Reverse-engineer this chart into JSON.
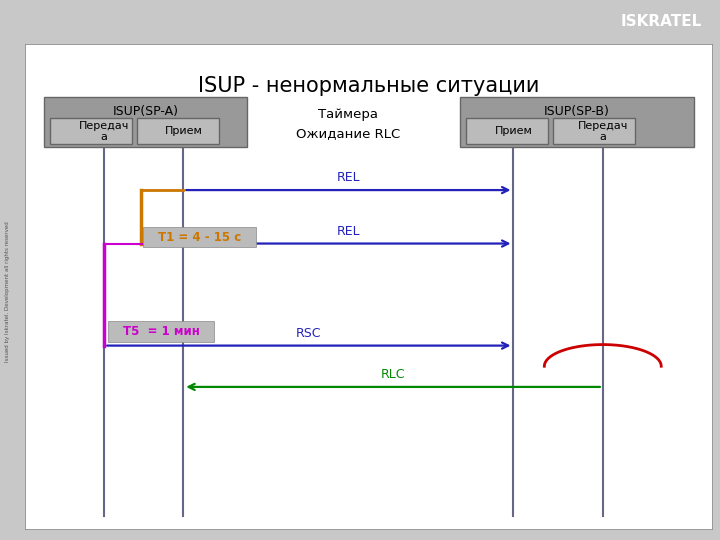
{
  "title": "ISUP - ненормальные ситуации",
  "header_bg": "#1E7FD8",
  "header_text": "ISKRATEL",
  "slide_bg": "#C8C8C8",
  "inner_bg": "#FFFFFF",
  "box_bg": "#999999",
  "sub_box_bg": "#BBBBBB",
  "spa_label": "ISUP(SP-A)",
  "spb_label": "ISUP(SP-B)",
  "timer_label": "Таймера\nОжидание RLC",
  "tx_label": "Передач\nа",
  "rx_label": "Прием",
  "line_color_blue": "#2222BB",
  "line_color_magenta": "#CC00CC",
  "line_color_orange": "#CC7700",
  "line_color_green": "#008800",
  "line_color_red": "#CC0000",
  "line_color_vline": "#666688",
  "t1_label": "T1 = 4 - 15 с",
  "t5_label": "T5  = 1 мин",
  "rel_label": "REL",
  "rsc_label": "RSC",
  "rlc_label": "RLC",
  "margin_text": "Issued by Iskratel. Development all rights reserved"
}
